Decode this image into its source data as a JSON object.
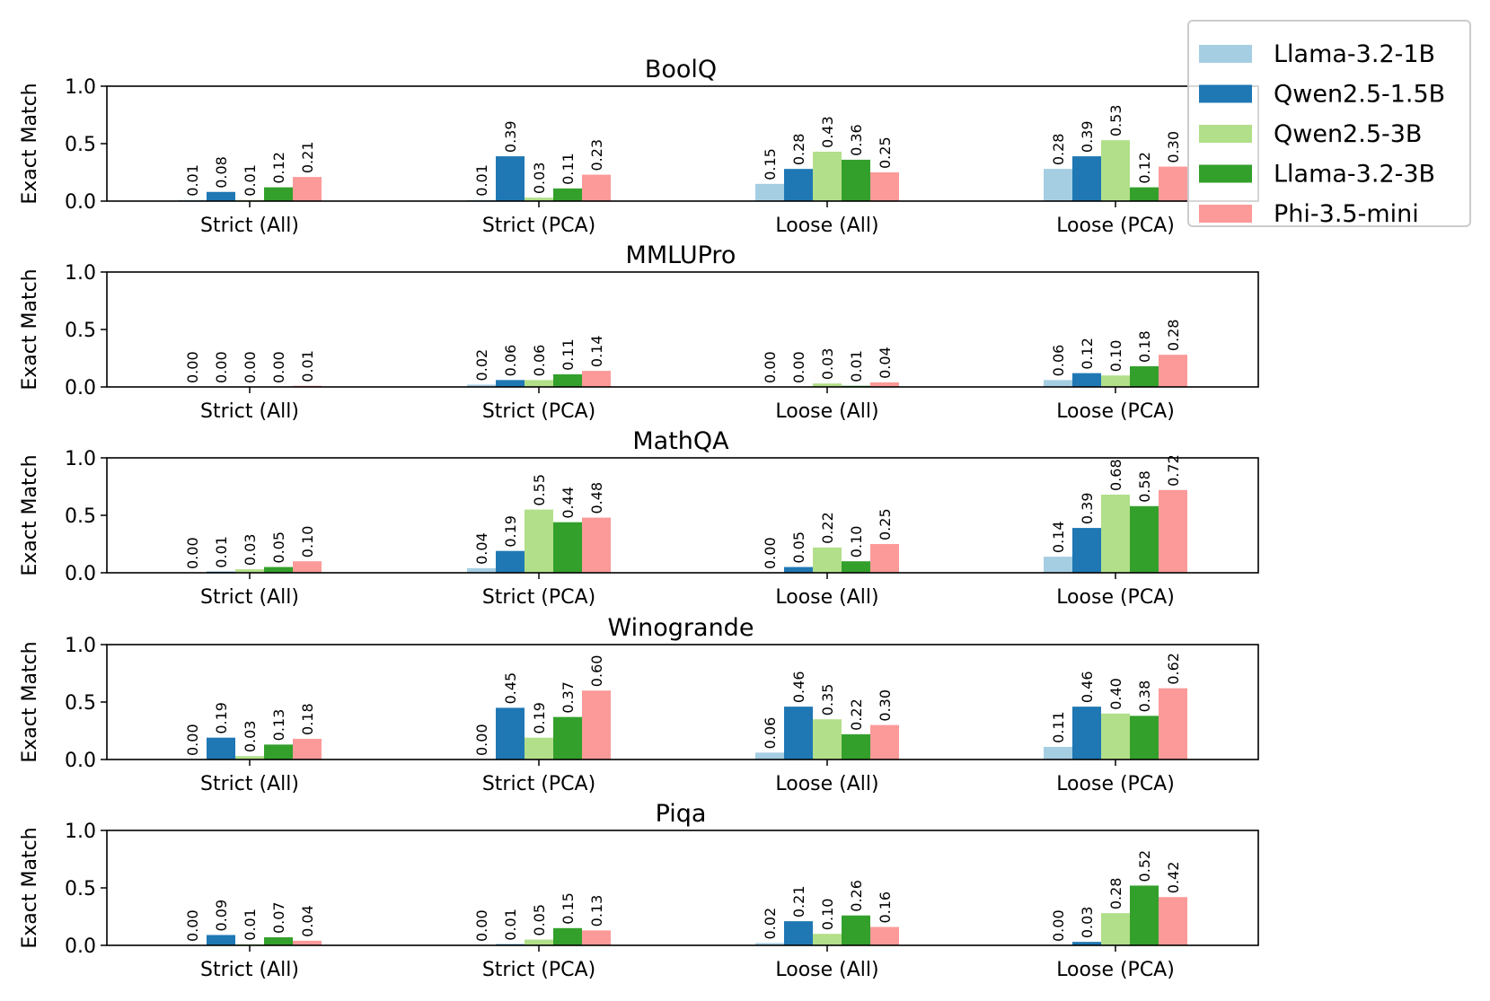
{
  "chart_data": {
    "type": "bar",
    "ylabel": "Exact Match",
    "ylim": [
      0,
      1.0
    ],
    "yticks": [
      "0.0",
      "0.5",
      "1.0"
    ],
    "categories": [
      "Strict (All)",
      "Strict (PCA)",
      "Loose (All)",
      "Loose (PCA)"
    ],
    "legend_position": "top-right",
    "series_names": [
      "Llama-3.2-1B",
      "Qwen2.5-1.5B",
      "Qwen2.5-3B",
      "Llama-3.2-3B",
      "Phi-3.5-mini"
    ],
    "colors": [
      "#a6cee3",
      "#1f78b4",
      "#b2df8a",
      "#33a02c",
      "#fb9a99"
    ],
    "panels": [
      {
        "title": "BoolQ",
        "values": [
          [
            0.01,
            0.08,
            0.01,
            0.12,
            0.21
          ],
          [
            0.01,
            0.39,
            0.03,
            0.11,
            0.23
          ],
          [
            0.15,
            0.28,
            0.43,
            0.36,
            0.25
          ],
          [
            0.28,
            0.39,
            0.53,
            0.12,
            0.3
          ]
        ]
      },
      {
        "title": "MMLUPro",
        "values": [
          [
            0.0,
            0.0,
            0.0,
            0.0,
            0.01
          ],
          [
            0.02,
            0.06,
            0.06,
            0.11,
            0.14
          ],
          [
            0.0,
            0.0,
            0.03,
            0.01,
            0.04
          ],
          [
            0.06,
            0.12,
            0.1,
            0.18,
            0.28
          ]
        ]
      },
      {
        "title": "MathQA",
        "values": [
          [
            0.0,
            0.01,
            0.03,
            0.05,
            0.1
          ],
          [
            0.04,
            0.19,
            0.55,
            0.44,
            0.48
          ],
          [
            0.0,
            0.05,
            0.22,
            0.1,
            0.25
          ],
          [
            0.14,
            0.39,
            0.68,
            0.58,
            0.72
          ]
        ]
      },
      {
        "title": "Winogrande",
        "values": [
          [
            0.0,
            0.19,
            0.03,
            0.13,
            0.18
          ],
          [
            0.0,
            0.45,
            0.19,
            0.37,
            0.6
          ],
          [
            0.06,
            0.46,
            0.35,
            0.22,
            0.3
          ],
          [
            0.11,
            0.46,
            0.4,
            0.38,
            0.62
          ]
        ]
      },
      {
        "title": "Piqa",
        "values": [
          [
            0.0,
            0.09,
            0.01,
            0.07,
            0.04
          ],
          [
            0.0,
            0.01,
            0.05,
            0.15,
            0.13
          ],
          [
            0.02,
            0.21,
            0.1,
            0.26,
            0.16
          ],
          [
            0.0,
            0.03,
            0.28,
            0.52,
            0.42
          ]
        ]
      }
    ]
  }
}
